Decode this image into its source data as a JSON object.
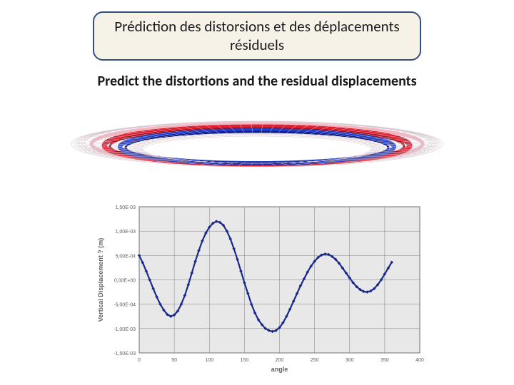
{
  "title_box": {
    "line1": "Prédiction des distorsions et des déplacements",
    "line2": "résiduels",
    "background": "#f6f2e8",
    "border_color": "#33507a",
    "border_radius": 14,
    "font_size": 21
  },
  "subtitle": {
    "text": "Predict the distortions and the residual displacements",
    "font_size": 20,
    "font_weight": "700"
  },
  "ring_figure": {
    "type": "3d-mesh-ring",
    "blue_band_color": "#2040cc",
    "red_band_color": "#e02030",
    "pink_band_color": "#f5b5c0",
    "mesh_line_color": "#d8c8d0"
  },
  "displacement_chart": {
    "type": "line",
    "title": "",
    "xlabel": "angle",
    "ylabel": "Vertical Displacement ? (m)",
    "xlim": [
      0,
      400
    ],
    "ylim": [
      -0.0015,
      0.0015
    ],
    "xtick_step": 50,
    "xtick_labels": [
      "0",
      "50",
      "100",
      "150",
      "200",
      "250",
      "300",
      "350",
      "400"
    ],
    "ytick_labels": [
      "-1,50E-03",
      "-1,00E-03",
      "-5,00E-04",
      "0,00E+00",
      "5,00E-04",
      "1,00E-03",
      "1,50E-03"
    ],
    "yticks": [
      -0.0015,
      -0.001,
      -0.0005,
      0,
      0.0005,
      0.001,
      0.0015
    ],
    "plot_background": "#e8e8e8",
    "grid_color": "#808080",
    "axis_color": "#404040",
    "label_color": "#606060",
    "line_color": "#1a2a8a",
    "marker_color": "#1a2a8a",
    "line_width": 2.2,
    "marker_radius": 2.3,
    "label_fontsize": 9,
    "tick_fontsize": 7,
    "series_x": [
      0,
      5,
      10,
      15,
      20,
      25,
      30,
      35,
      40,
      45,
      50,
      55,
      60,
      65,
      70,
      75,
      80,
      85,
      90,
      95,
      100,
      105,
      110,
      115,
      120,
      125,
      130,
      135,
      140,
      145,
      150,
      155,
      160,
      165,
      170,
      175,
      180,
      185,
      190,
      195,
      200,
      205,
      210,
      215,
      220,
      225,
      230,
      235,
      240,
      245,
      250,
      255,
      260,
      265,
      270,
      275,
      280,
      285,
      290,
      295,
      300,
      305,
      310,
      315,
      320,
      325,
      330,
      335,
      340,
      345,
      350,
      355,
      360
    ],
    "series_y": [
      0.0005,
      0.00035,
      0.00018,
      0.0,
      -0.00018,
      -0.00035,
      -0.0005,
      -0.00062,
      -0.00071,
      -0.00075,
      -0.00072,
      -0.00064,
      -0.0005,
      -0.00032,
      -0.0001,
      0.00014,
      0.00038,
      0.0006,
      0.0008,
      0.00096,
      0.00108,
      0.00116,
      0.0012,
      0.00118,
      0.00112,
      0.001,
      0.00084,
      0.00064,
      0.00042,
      0.00018,
      -6e-05,
      -0.00028,
      -0.0005,
      -0.00068,
      -0.00082,
      -0.00092,
      -0.001,
      -0.00104,
      -0.00106,
      -0.00104,
      -0.00098,
      -0.00088,
      -0.00075,
      -0.0006,
      -0.00044,
      -0.00028,
      -0.00012,
      2e-05,
      0.00016,
      0.00028,
      0.00038,
      0.00046,
      0.00051,
      0.00053,
      0.00052,
      0.00048,
      0.00042,
      0.00034,
      0.00024,
      0.00014,
      4e-05,
      -6e-05,
      -0.00014,
      -0.0002,
      -0.00024,
      -0.00025,
      -0.00023,
      -0.00018,
      -0.0001,
      0.0,
      0.00012,
      0.00024,
      0.00036
    ]
  }
}
